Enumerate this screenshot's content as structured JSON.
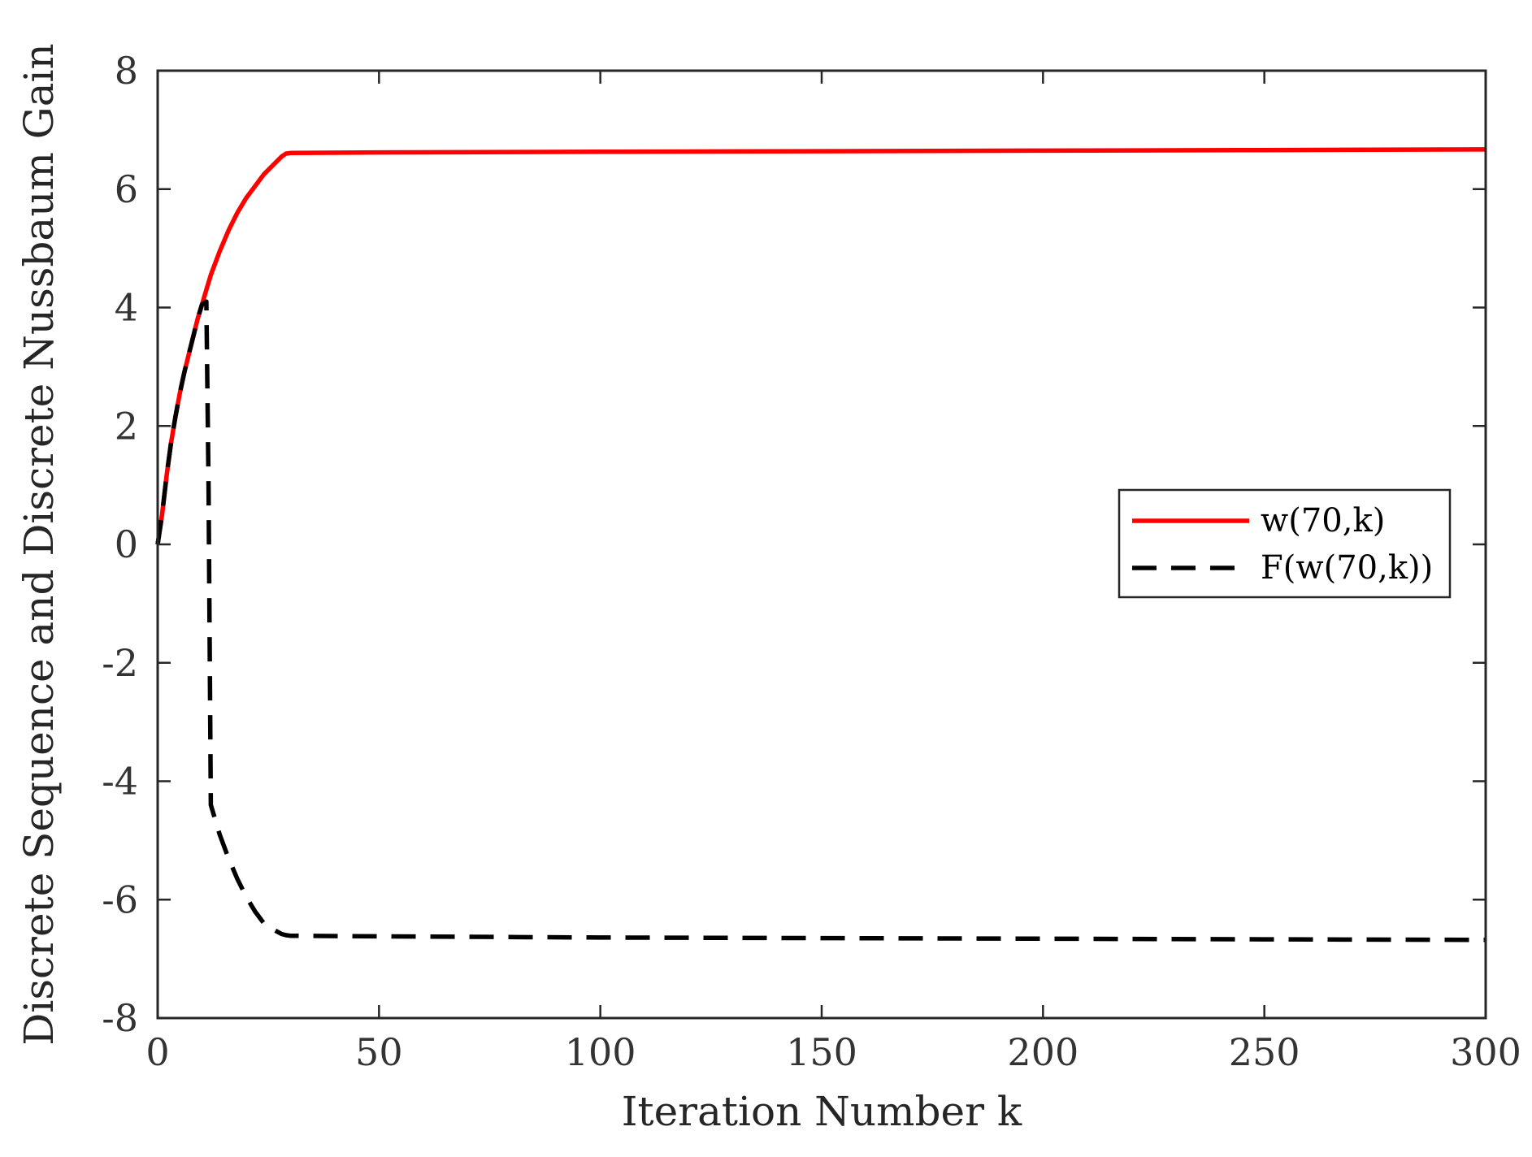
{
  "chart_data": {
    "type": "line",
    "xlabel": "Iteration Number k",
    "ylabel": "Discrete Sequence and Discrete Nussbaum Gain",
    "xlim": [
      0,
      300
    ],
    "ylim": [
      -8,
      8
    ],
    "xticks": [
      0,
      50,
      100,
      150,
      200,
      250,
      300
    ],
    "xtick_labels": [
      "0",
      "50",
      "100",
      "150",
      "200",
      "250",
      "300"
    ],
    "yticks": [
      -8,
      -6,
      -4,
      -2,
      0,
      2,
      4,
      6,
      8
    ],
    "ytick_labels": [
      "-8",
      "-6",
      "-4",
      "-2",
      "0",
      "2",
      "4",
      "6",
      "8"
    ],
    "grid": false,
    "legend_position": "right",
    "series": [
      {
        "name": "w(70,k)",
        "color": "#ff0000",
        "style": "solid",
        "x": [
          0,
          1,
          2,
          3,
          4,
          5,
          6,
          7,
          8,
          9,
          10,
          11,
          12,
          14,
          16,
          18,
          20,
          22,
          24,
          26,
          28,
          29,
          30,
          50,
          100,
          150,
          200,
          250,
          300
        ],
        "y": [
          0,
          0.5,
          1.15,
          1.7,
          2.15,
          2.55,
          2.9,
          3.2,
          3.5,
          3.8,
          4.05,
          4.3,
          4.55,
          4.95,
          5.3,
          5.6,
          5.85,
          6.05,
          6.25,
          6.4,
          6.55,
          6.6,
          6.61,
          6.62,
          6.63,
          6.64,
          6.65,
          6.66,
          6.67
        ]
      },
      {
        "name": "F(w(70,k))",
        "color": "#000000",
        "style": "dashed",
        "x": [
          0,
          1,
          2,
          3,
          4,
          5,
          6,
          7,
          8,
          9,
          10,
          11,
          11.5,
          12,
          14,
          16,
          18,
          20,
          22,
          24,
          26,
          28,
          29,
          30,
          50,
          100,
          150,
          200,
          250,
          300
        ],
        "y": [
          0,
          0.5,
          1.15,
          1.7,
          2.15,
          2.55,
          2.9,
          3.2,
          3.5,
          3.8,
          4.05,
          4.1,
          1.0,
          -4.4,
          -4.9,
          -5.3,
          -5.65,
          -5.95,
          -6.2,
          -6.4,
          -6.5,
          -6.58,
          -6.6,
          -6.61,
          -6.62,
          -6.64,
          -6.65,
          -6.66,
          -6.67,
          -6.68
        ]
      }
    ]
  }
}
